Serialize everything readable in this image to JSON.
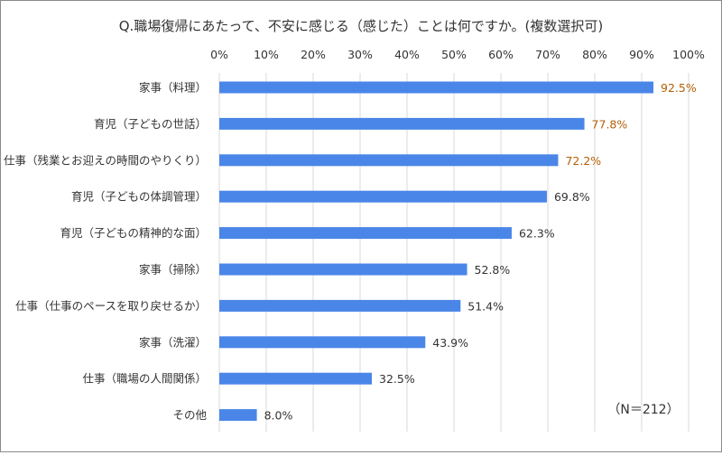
{
  "chart_data": {
    "type": "bar",
    "orientation": "horizontal",
    "title": "Q.職場復帰にあたって、不安に感じる（感じた）ことは何ですか。(複数選択可)",
    "categories": [
      "家事（料理）",
      "育児（子どもの世話）",
      "仕事（残業とお迎えの時間のやりくり）",
      "育児（子どもの体調管理）",
      "育児（子どもの精神的な面）",
      "家事（掃除）",
      "仕事（仕事のペースを取り戻せるか）",
      "家事（洗濯）",
      "仕事（職場の人間関係）",
      "その他"
    ],
    "values": [
      92.5,
      77.8,
      72.2,
      69.8,
      62.3,
      52.8,
      51.4,
      43.9,
      32.5,
      8.0
    ],
    "data_labels": [
      "92.5%",
      "77.8%",
      "72.2%",
      "69.8%",
      "62.3%",
      "52.8%",
      "51.4%",
      "43.9%",
      "32.5%",
      "8.0%"
    ],
    "highlighted_top": 3,
    "xlim": [
      0,
      100
    ],
    "x_ticks": [
      "0%",
      "10%",
      "20%",
      "30%",
      "40%",
      "50%",
      "60%",
      "70%",
      "80%",
      "90%",
      "100%"
    ],
    "x_axis_position": "top",
    "grid": true,
    "annotation": "（N＝212）",
    "colors": {
      "bar": "#4A86E8",
      "highlight_label": "#B45F06",
      "label": "#333333",
      "grid": "#D9D9D9"
    }
  }
}
